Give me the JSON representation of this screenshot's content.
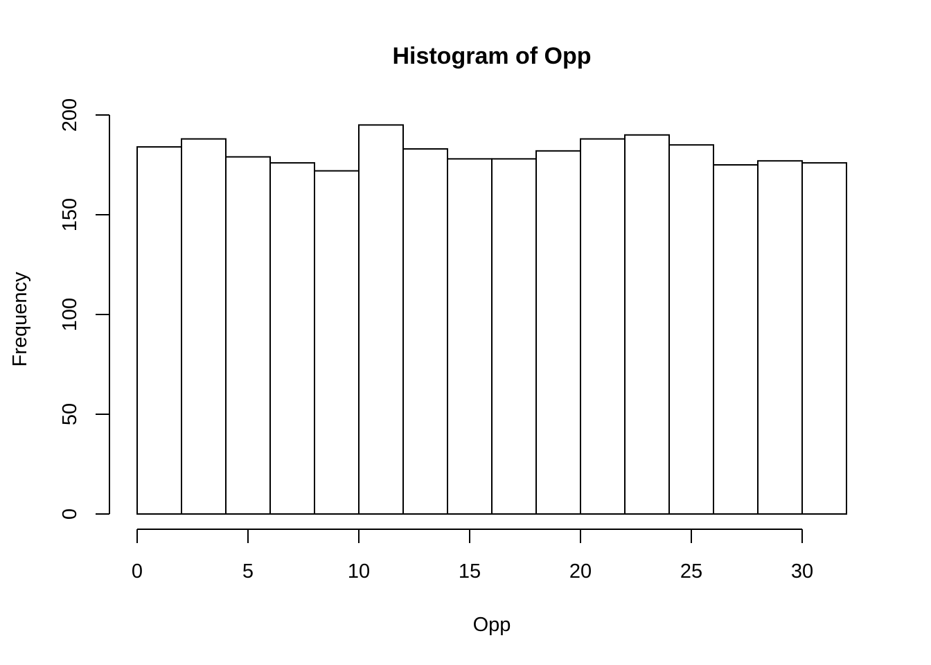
{
  "chart_data": {
    "type": "bar",
    "title": "Histogram of Opp",
    "xlabel": "Opp",
    "ylabel": "Frequency",
    "bin_edges": [
      0,
      2,
      4,
      6,
      8,
      10,
      12,
      14,
      16,
      18,
      20,
      22,
      24,
      26,
      28,
      30,
      32
    ],
    "values": [
      184,
      188,
      179,
      176,
      172,
      195,
      183,
      178,
      178,
      182,
      188,
      190,
      185,
      175,
      177,
      176
    ],
    "xlim": [
      0,
      32
    ],
    "ylim": [
      0,
      200
    ],
    "x_ticks": [
      "0",
      "5",
      "10",
      "15",
      "20",
      "25",
      "30"
    ],
    "y_ticks": [
      "0",
      "50",
      "100",
      "150",
      "200"
    ],
    "grid": false,
    "colors": {
      "bar_fill": "#ffffff",
      "bar_stroke": "#000000"
    }
  }
}
